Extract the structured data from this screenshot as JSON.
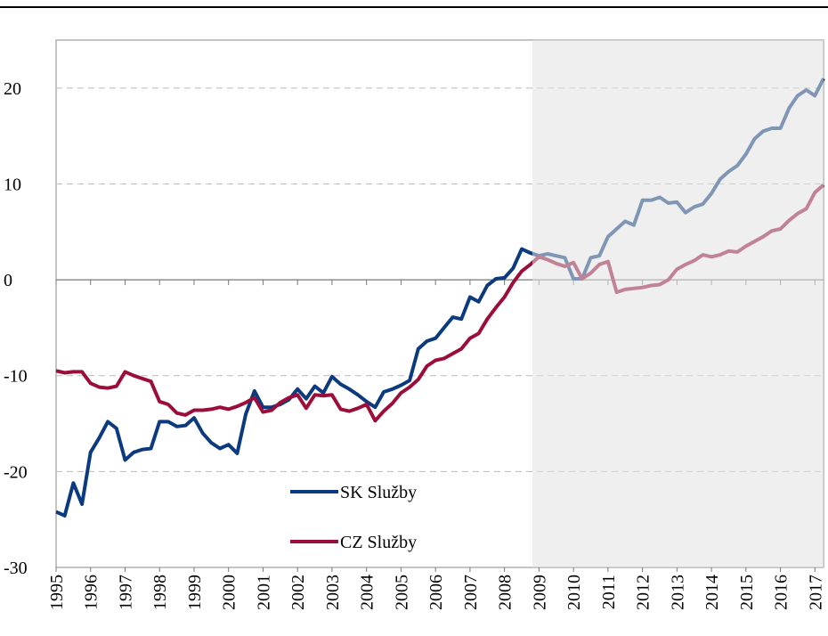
{
  "chart_data": {
    "type": "line",
    "categories": [
      "1995",
      null,
      null,
      null,
      "1996",
      null,
      null,
      null,
      "1997",
      null,
      null,
      null,
      "1998",
      null,
      null,
      null,
      "1999",
      null,
      null,
      null,
      "2000",
      null,
      null,
      null,
      "2001",
      null,
      null,
      null,
      "2002",
      null,
      null,
      null,
      "2003",
      null,
      null,
      null,
      "2004",
      null,
      null,
      null,
      "2005",
      null,
      null,
      null,
      "2006",
      null,
      null,
      null,
      "2007",
      null,
      null,
      null,
      "2008",
      null,
      null,
      null,
      "2009",
      null,
      null,
      null,
      "2010",
      null,
      null,
      null,
      "2011",
      null,
      null,
      null,
      "2012",
      null,
      null,
      null,
      "2013",
      null,
      null,
      null,
      "2014",
      null,
      null,
      null,
      "2015",
      null,
      null,
      null,
      "2016",
      null,
      null,
      null,
      "2017",
      null
    ],
    "series": [
      {
        "name": "SK Služby",
        "color": "#0b3a7e",
        "values": [
          -24.2,
          -24.6,
          -21.2,
          -23.4,
          -18,
          -16.5,
          -14.8,
          -15.5,
          -18.8,
          -18,
          -17.7,
          -17.6,
          -14.8,
          -14.8,
          -15.3,
          -15.2,
          -14.4,
          -16,
          -17,
          -17.6,
          -17.2,
          -18.1,
          -14,
          -11.6,
          -13.3,
          -13.3,
          -13,
          -12.5,
          -11.4,
          -12.4,
          -11.1,
          -11.8,
          -10.1,
          -10.9,
          -11.4,
          -12,
          -12.7,
          -13.3,
          -11.7,
          -11.4,
          -11,
          -10.5,
          -7.2,
          -6.4,
          -6.1,
          -5,
          -3.9,
          -4.1,
          -1.8,
          -2.3,
          -0.6,
          0.1,
          0.2,
          1.2,
          3.2,
          2.8,
          2.5,
          2.7,
          2.5,
          2.3,
          0.1,
          0.1,
          2.3,
          2.5,
          4.5,
          5.3,
          6.1,
          5.7,
          8.3,
          8.3,
          8.6,
          8.0,
          8.1,
          7.0,
          7.6,
          7.9,
          9.0,
          10.5,
          11.3,
          11.9,
          13.1,
          14.7,
          15.5,
          15.8,
          15.8,
          17.9,
          19.2,
          19.8,
          19.2,
          21.0
        ]
      },
      {
        "name": "CZ Služby",
        "color": "#9b0e3a",
        "values": [
          -9.5,
          -9.7,
          -9.6,
          -9.6,
          -10.8,
          -11.2,
          -11.3,
          -11.1,
          -9.6,
          -10,
          -10.3,
          -10.6,
          -12.7,
          -13,
          -13.9,
          -14.1,
          -13.6,
          -13.6,
          -13.5,
          -13.3,
          -13.5,
          -13.2,
          -12.8,
          -12.3,
          -13.8,
          -13.6,
          -12.8,
          -12.3,
          -12,
          -13.4,
          -12,
          -12.1,
          -12,
          -13.5,
          -13.7,
          -13.4,
          -13,
          -14.7,
          -13.7,
          -12.9,
          -11.8,
          -11.2,
          -10.4,
          -9,
          -8.4,
          -8.2,
          -7.7,
          -7.2,
          -6.1,
          -5.6,
          -4.1,
          -2.9,
          -1.8,
          -0.3,
          0.9,
          1.6,
          2.4,
          2.1,
          1.7,
          1.4,
          1.8,
          0.1,
          0.7,
          1.6,
          1.9,
          -1.3,
          -1.0,
          -0.9,
          -0.8,
          -0.6,
          -0.5,
          0.0,
          1.1,
          1.6,
          2.0,
          2.6,
          2.4,
          2.6,
          3.0,
          2.9,
          3.5,
          4.0,
          4.5,
          5.1,
          5.3,
          6.2,
          6.9,
          7.4,
          9.1,
          9.9
        ]
      }
    ],
    "ylim": [
      -30,
      25
    ],
    "yticks": [
      -30,
      -20,
      -10,
      0,
      10,
      20
    ],
    "grid": true,
    "legend": "lower center"
  }
}
